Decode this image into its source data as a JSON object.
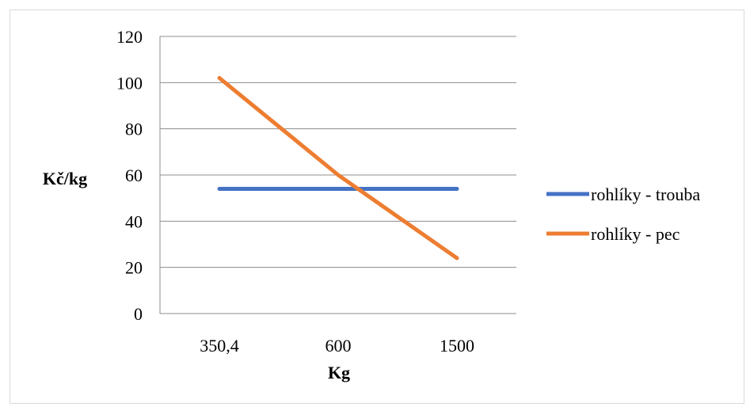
{
  "chart_data": {
    "type": "line",
    "categories": [
      "350,4",
      "600",
      "1500"
    ],
    "series": [
      {
        "name": "rohlíky - trouba",
        "values": [
          54,
          54,
          54
        ],
        "color": "#4472c4"
      },
      {
        "name": "rohlíky - pec",
        "values": [
          102,
          60,
          24
        ],
        "color": "#ed7d31"
      }
    ],
    "xlabel": "Kg",
    "ylabel": "Kč/kg",
    "ylim": [
      0,
      120
    ],
    "yticks": [
      0,
      20,
      40,
      60,
      80,
      100,
      120
    ],
    "grid": true,
    "legend_position": "right"
  }
}
